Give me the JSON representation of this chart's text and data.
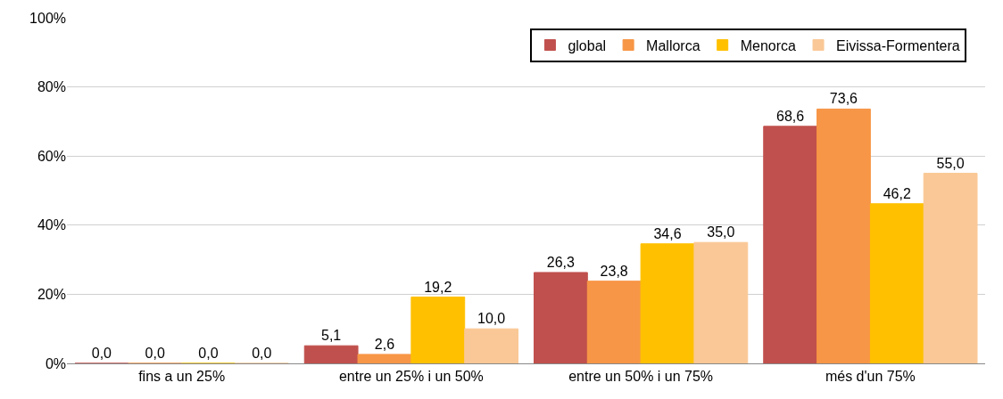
{
  "chart_data": {
    "type": "bar",
    "categories": [
      "fins a un 25%",
      "entre un 25% i un 50%",
      "entre un 50% i un 75%",
      "més d'un 75%"
    ],
    "series": [
      {
        "name": "global",
        "color": "#c0504d",
        "values": [
          0.0,
          5.1,
          26.3,
          68.6
        ],
        "value_labels": [
          "0,0",
          "5,1",
          "26,3",
          "68,6"
        ]
      },
      {
        "name": "Mallorca",
        "color": "#f79646",
        "values": [
          0.0,
          2.6,
          23.8,
          73.6
        ],
        "value_labels": [
          "0,0",
          "2,6",
          "23,8",
          "73,6"
        ]
      },
      {
        "name": "Menorca",
        "color": "#ffc000",
        "values": [
          0.0,
          19.2,
          34.6,
          46.2
        ],
        "value_labels": [
          "0,0",
          "19,2",
          "34,6",
          "46,2"
        ]
      },
      {
        "name": "Eivissa-Formentera",
        "color": "#fac896",
        "values": [
          0.0,
          10.0,
          35.0,
          55.0
        ],
        "value_labels": [
          "0,0",
          "10,0",
          "35,0",
          "55,0"
        ]
      }
    ],
    "ylim": [
      0,
      100
    ],
    "yticks": [
      {
        "value": 0,
        "label": "0%"
      },
      {
        "value": 20,
        "label": "20%"
      },
      {
        "value": 40,
        "label": "40%"
      },
      {
        "value": 60,
        "label": "60%"
      },
      {
        "value": 80,
        "label": "80%"
      },
      {
        "value": 100,
        "label": "100%"
      }
    ],
    "grid": "y",
    "legend": "top right"
  }
}
